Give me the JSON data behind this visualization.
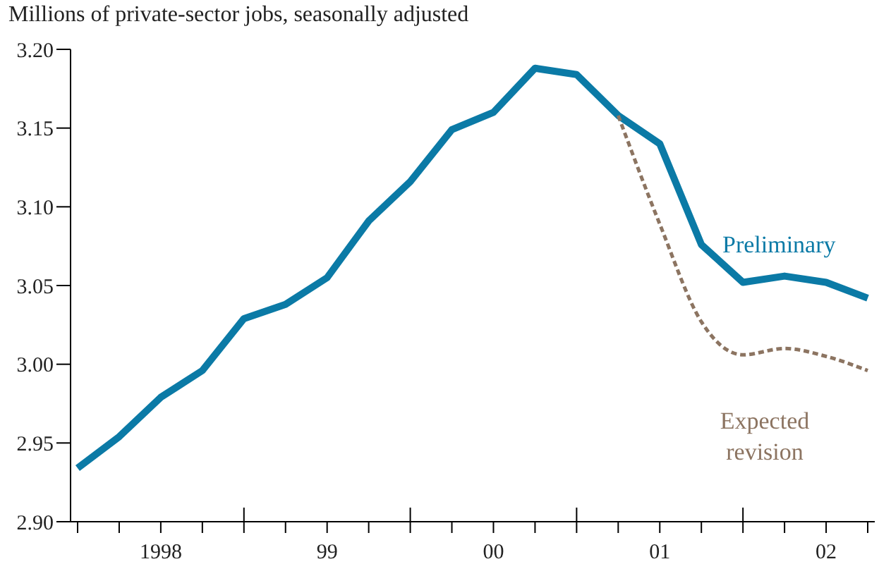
{
  "chart_data": {
    "type": "line",
    "ylabel": "Millions of private-sector jobs, seasonally adjusted",
    "categories": [
      null,
      null,
      "1998",
      null,
      null,
      null,
      "99",
      null,
      null,
      null,
      "00",
      null,
      null,
      null,
      "01",
      null,
      null,
      null,
      "02",
      null
    ],
    "ylim": [
      2.9,
      3.2
    ],
    "yticks": [
      {
        "value": 2.9,
        "label": "2.90"
      },
      2.95,
      {
        "value": 3.0,
        "label": "3.00"
      },
      3.05,
      {
        "value": 3.1,
        "label": "3.10"
      },
      3.15,
      {
        "value": 3.2,
        "label": "3.20"
      }
    ],
    "marker": "none",
    "series": [
      {
        "name": "Preliminary",
        "color": "#0b7aa6",
        "line_style": "solid",
        "values": [
          2.934,
          2.954,
          2.979,
          2.996,
          3.029,
          3.038,
          3.055,
          3.091,
          3.116,
          3.149,
          3.16,
          3.188,
          3.184,
          3.158,
          3.14,
          3.076,
          3.052,
          3.056,
          3.052,
          3.042
        ]
      },
      {
        "name": "Expected revision",
        "color": "#8c7461",
        "line_style": "dashed",
        "values": [
          null,
          null,
          null,
          null,
          null,
          null,
          null,
          null,
          null,
          null,
          null,
          null,
          null,
          3.158,
          3.089,
          3.027,
          3.006,
          3.01,
          3.005,
          2.996
        ]
      }
    ]
  }
}
